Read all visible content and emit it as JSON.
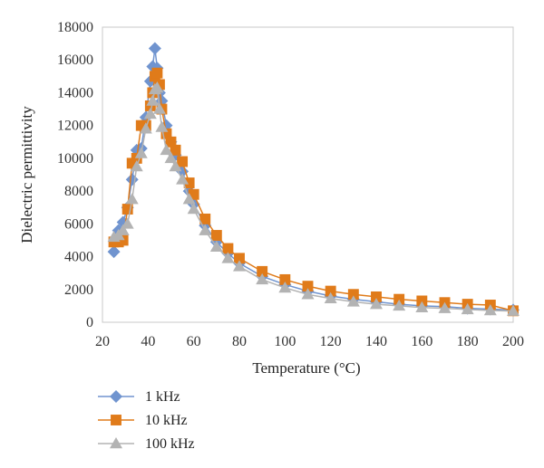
{
  "chart_data": {
    "type": "scatter",
    "title": "",
    "xlabel": "Temperature (°C)",
    "ylabel": "Dielectric permittivity",
    "xlim": [
      20,
      200
    ],
    "ylim": [
      0,
      18000
    ],
    "xticks": [
      20,
      40,
      60,
      80,
      100,
      120,
      140,
      160,
      180,
      200
    ],
    "yticks": [
      0,
      2000,
      4000,
      6000,
      8000,
      10000,
      12000,
      14000,
      16000,
      18000
    ],
    "grid": false,
    "legend_position": "bottom-left",
    "series": [
      {
        "name": "1 kHz",
        "color": "#7094cf",
        "marker": "diamond",
        "x": [
          25,
          27,
          29,
          31,
          33,
          35,
          37,
          39,
          41,
          42,
          43,
          44,
          45,
          46,
          48,
          50,
          52,
          55,
          58,
          60,
          65,
          70,
          75,
          80,
          90,
          100,
          110,
          120,
          130,
          140,
          150,
          160,
          170,
          180,
          190,
          200
        ],
        "y": [
          4300,
          5600,
          6100,
          7000,
          8700,
          10500,
          10600,
          12500,
          14700,
          15600,
          16700,
          15500,
          14000,
          13500,
          12000,
          11000,
          10200,
          9200,
          8000,
          7200,
          5900,
          4900,
          4200,
          3600,
          2800,
          2300,
          1900,
          1600,
          1400,
          1250,
          1100,
          1000,
          950,
          850,
          800,
          750
        ]
      },
      {
        "name": "10 kHz",
        "color": "#e07b1a",
        "marker": "square",
        "x": [
          25,
          27,
          29,
          31,
          33,
          35,
          37,
          39,
          41,
          42,
          43,
          44,
          45,
          46,
          48,
          50,
          52,
          55,
          58,
          60,
          65,
          70,
          75,
          80,
          90,
          100,
          110,
          120,
          130,
          140,
          150,
          160,
          170,
          180,
          190,
          200
        ],
        "y": [
          4900,
          4900,
          5000,
          6900,
          9700,
          10000,
          12000,
          12000,
          13200,
          14000,
          15000,
          15200,
          14500,
          13000,
          11500,
          11000,
          10500,
          9800,
          8500,
          7800,
          6300,
          5300,
          4500,
          3900,
          3100,
          2600,
          2200,
          1900,
          1700,
          1550,
          1400,
          1300,
          1200,
          1100,
          1050,
          700
        ]
      },
      {
        "name": "100 kHz",
        "color": "#b3b3b3",
        "marker": "triangle",
        "x": [
          25,
          27,
          29,
          31,
          33,
          35,
          37,
          39,
          41,
          42,
          43,
          44,
          45,
          46,
          48,
          50,
          52,
          55,
          58,
          60,
          65,
          70,
          75,
          80,
          90,
          100,
          110,
          120,
          130,
          140,
          150,
          160,
          170,
          180,
          190,
          200
        ],
        "y": [
          5200,
          5300,
          5600,
          6000,
          7500,
          9500,
          10300,
          11800,
          12700,
          13500,
          14200,
          14300,
          13000,
          11900,
          10500,
          10000,
          9500,
          8700,
          7500,
          6900,
          5600,
          4600,
          3900,
          3400,
          2600,
          2100,
          1700,
          1450,
          1250,
          1100,
          1000,
          900,
          850,
          780,
          720,
          680
        ]
      }
    ]
  }
}
